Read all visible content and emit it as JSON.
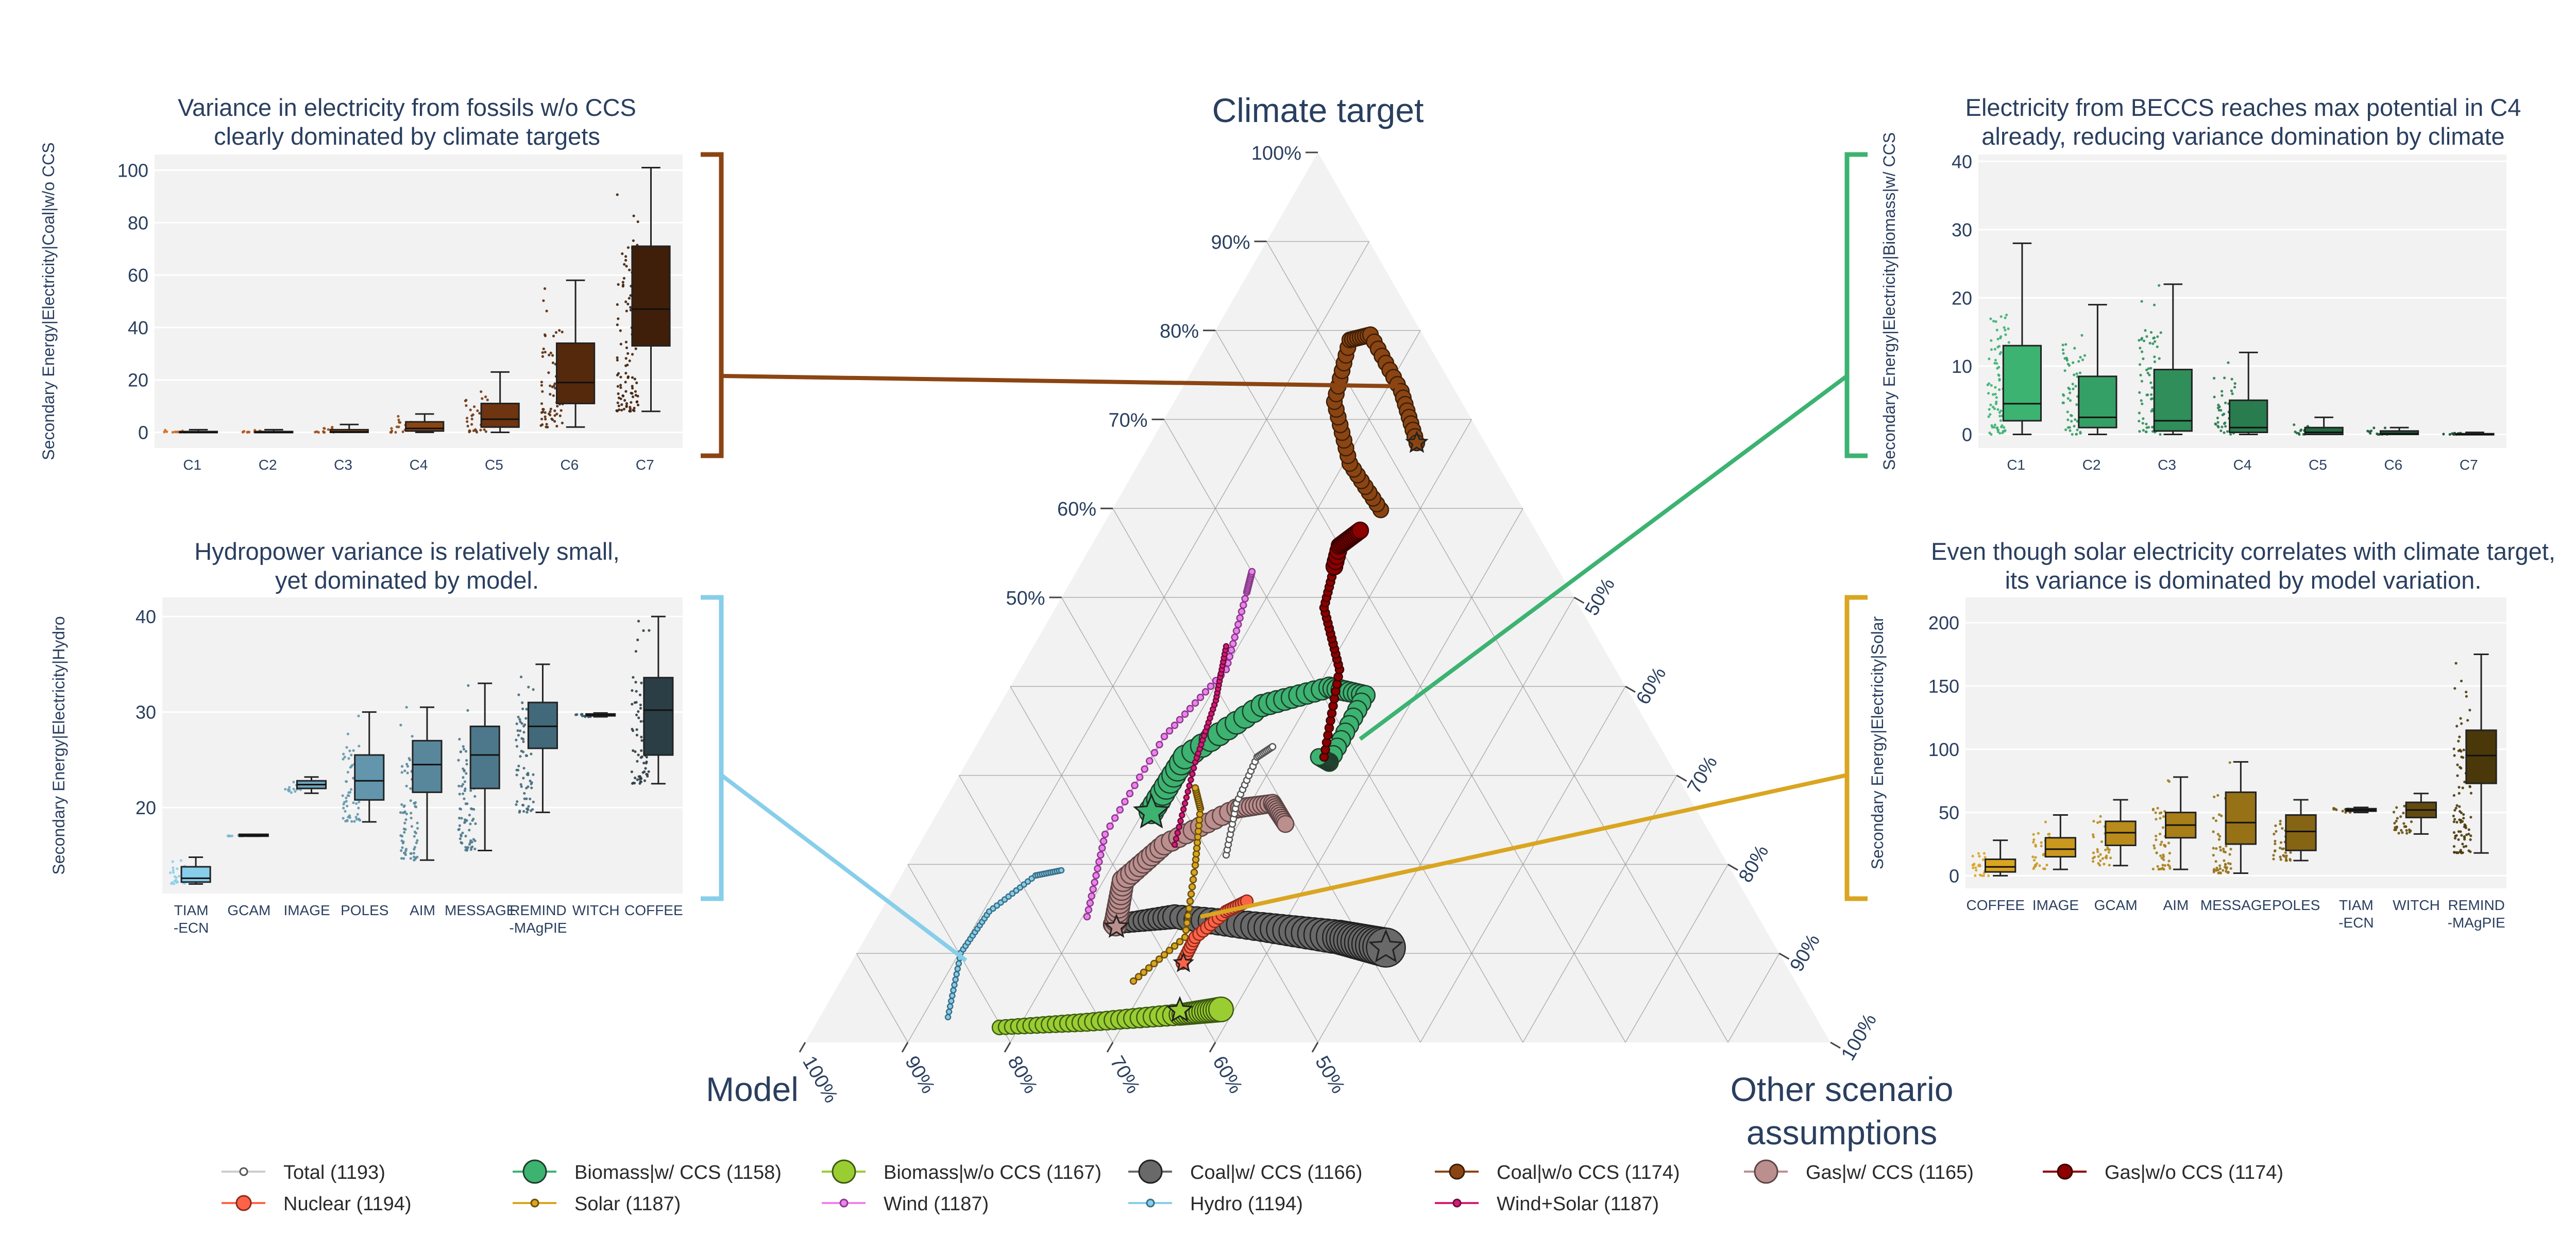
{
  "colors": {
    "text": "#2a3f5f",
    "panel_bg": "#f2f2f2",
    "grid": "#ffffff",
    "ternary_bg": "#f2f2f2",
    "ternary_grid": "#9a9a9a",
    "coal_wo": "#8b4513",
    "biomass_w": "#3cb371",
    "hydro": "#87ceeb",
    "solar": "#daa520"
  },
  "ternary": {
    "title_top": "Climate target",
    "title_left": "Model",
    "title_right_line1": "Other scenario",
    "title_right_line2": "assumptions",
    "left_axis_ticks": [
      "50%",
      "60%",
      "70%",
      "80%",
      "90%",
      "100%"
    ],
    "right_axis_ticks": [
      "50%",
      "60%",
      "70%",
      "80%",
      "90%",
      "100%"
    ],
    "bottom_axis_ticks": [
      "100%",
      "90%",
      "80%",
      "70%",
      "60%",
      "50%"
    ]
  },
  "legend": [
    {
      "label": "Total (1193)",
      "color": "#ffffff",
      "stroke": "#555555",
      "size": "small"
    },
    {
      "label": "Biomass|w/ CCS (1158)",
      "color": "#3cb371",
      "stroke": "#1f3d2b",
      "size": "large"
    },
    {
      "label": "Biomass|w/o CCS (1167)",
      "color": "#9acd32",
      "stroke": "#3c5a10",
      "size": "large"
    },
    {
      "label": "Coal|w/ CCS (1166)",
      "color": "#696969",
      "stroke": "#222222",
      "size": "large"
    },
    {
      "label": "Coal|w/o CCS (1174)",
      "color": "#8b4513",
      "stroke": "#3d1e06",
      "size": "medium"
    },
    {
      "label": "Gas|w/ CCS (1165)",
      "color": "#bc8f8f",
      "stroke": "#5e4545",
      "size": "large"
    },
    {
      "label": "Gas|w/o CCS (1174)",
      "color": "#8b0000",
      "stroke": "#3a0000",
      "size": "medium"
    },
    {
      "label": "Nuclear (1194)",
      "color": "#ff6347",
      "stroke": "#8b2a1b",
      "size": "medium"
    },
    {
      "label": "Solar (1187)",
      "color": "#daa520",
      "stroke": "#6b500c",
      "size": "small"
    },
    {
      "label": "Wind (1187)",
      "color": "#ee82ee",
      "stroke": "#8b3a8b",
      "size": "small"
    },
    {
      "label": "Hydro (1194)",
      "color": "#87ceeb",
      "stroke": "#3a6f86",
      "size": "small"
    },
    {
      "label": "Wind+Solar (1187)",
      "color": "#d81b78",
      "stroke": "#6d0c3b",
      "size": "small"
    }
  ],
  "chart_data": [
    {
      "type": "box",
      "id": "coal",
      "title_line1": "Variance in electricity from fossils w/o CCS",
      "title_line2": "clearly dominated by climate targets",
      "ylabel": "Secondary Energy|Electricity|Coal|w/o CCS",
      "ylim": [
        -6,
        106
      ],
      "yticks": [
        "0",
        "20",
        "40",
        "60",
        "80",
        "100"
      ],
      "categories": [
        "C1",
        "C2",
        "C3",
        "C4",
        "C5",
        "C6",
        "C7"
      ],
      "fill_colors": [
        "#d2691e",
        "#b8561a",
        "#a04a15",
        "#8b4513",
        "#6e3510",
        "#55290c",
        "#3f1f09"
      ],
      "box": [
        {
          "min": 0,
          "q1": 0,
          "median": 0,
          "q3": 0.3,
          "max": 1
        },
        {
          "min": 0,
          "q1": 0,
          "median": 0,
          "q3": 0.3,
          "max": 1
        },
        {
          "min": 0,
          "q1": 0,
          "median": 0.2,
          "q3": 1,
          "max": 3
        },
        {
          "min": 0,
          "q1": 0.5,
          "median": 1.5,
          "q3": 4,
          "max": 7
        },
        {
          "min": 0,
          "q1": 2,
          "median": 5,
          "q3": 11,
          "max": 23
        },
        {
          "min": 2,
          "q1": 11,
          "median": 19,
          "q3": 34,
          "max": 58
        },
        {
          "min": 8,
          "q1": 33,
          "median": 47,
          "q3": 71,
          "max": 101
        }
      ]
    },
    {
      "type": "box",
      "id": "biomass",
      "title_line1": "Electricity from BECCS reaches max potential in C4",
      "title_line2": "already, reducing variance domination by climate",
      "ylabel": "Secondary Energy|Electricity|Biomass|w/ CCS",
      "ylim": [
        -2,
        41
      ],
      "yticks": [
        "0",
        "10",
        "20",
        "30",
        "40"
      ],
      "categories": [
        "C1",
        "C2",
        "C3",
        "C4",
        "C5",
        "C6",
        "C7"
      ],
      "fill_colors": [
        "#3cb371",
        "#35a065",
        "#2f8e59",
        "#297c4e",
        "#226a42",
        "#1b5836",
        "#15462b"
      ],
      "box": [
        {
          "min": 0,
          "q1": 2,
          "median": 4.5,
          "q3": 13,
          "max": 28
        },
        {
          "min": 0,
          "q1": 1,
          "median": 2.5,
          "q3": 8.5,
          "max": 19
        },
        {
          "min": 0,
          "q1": 0.5,
          "median": 2,
          "q3": 9.5,
          "max": 22
        },
        {
          "min": 0,
          "q1": 0.3,
          "median": 1,
          "q3": 5,
          "max": 12
        },
        {
          "min": 0,
          "q1": 0,
          "median": 0.3,
          "q3": 1,
          "max": 2.5
        },
        {
          "min": 0,
          "q1": 0,
          "median": 0.1,
          "q3": 0.5,
          "max": 1
        },
        {
          "min": 0,
          "q1": 0,
          "median": 0,
          "q3": 0.1,
          "max": 0.3
        }
      ]
    },
    {
      "type": "box",
      "id": "hydro",
      "title_line1": "Hydropower variance is relatively small,",
      "title_line2": "yet dominated by model.",
      "ylabel": "Secondary Energy|Electricity|Hydro",
      "ylim": [
        11,
        42
      ],
      "yticks": [
        "20",
        "30",
        "40"
      ],
      "categories": [
        "TIAM\n-ECN",
        "GCAM",
        "IMAGE",
        "POLES",
        "AIM",
        "MESSAGE",
        "REMIND\n-MAgPIE",
        "WITCH",
        "COFFEE"
      ],
      "fill_colors": [
        "#87ceeb",
        "#7ab9d4",
        "#6ea5be",
        "#6396ad",
        "#58879c",
        "#4d788b",
        "#42697a",
        "#375a69",
        "#2c3e45"
      ],
      "box": [
        {
          "min": 12,
          "q1": 12.2,
          "median": 12.6,
          "q3": 13.8,
          "max": 14.8
        },
        {
          "min": 17,
          "q1": 17,
          "median": 17.1,
          "q3": 17.2,
          "max": 17.2
        },
        {
          "min": 21.5,
          "q1": 22,
          "median": 22.4,
          "q3": 22.8,
          "max": 23.2
        },
        {
          "min": 18.5,
          "q1": 20.8,
          "median": 22.8,
          "q3": 25.5,
          "max": 30
        },
        {
          "min": 14.5,
          "q1": 21.6,
          "median": 24.5,
          "q3": 27,
          "max": 30.5
        },
        {
          "min": 15.5,
          "q1": 22,
          "median": 25.5,
          "q3": 28.5,
          "max": 33
        },
        {
          "min": 19.5,
          "q1": 26.2,
          "median": 28.5,
          "q3": 31,
          "max": 35
        },
        {
          "min": 29.5,
          "q1": 29.6,
          "median": 29.7,
          "q3": 29.8,
          "max": 29.9
        },
        {
          "min": 22.5,
          "q1": 25.5,
          "median": 30.2,
          "q3": 33.6,
          "max": 40
        }
      ]
    },
    {
      "type": "box",
      "id": "solar",
      "title_line1": "Even though solar electricity correlates with climate target,",
      "title_line2": "its variance is dominated by model variation.",
      "ylabel": "Secondary Energy|Electricity|Solar",
      "ylim": [
        -10,
        220
      ],
      "yticks": [
        "0",
        "50",
        "100",
        "150",
        "200"
      ],
      "categories": [
        "COFFEE",
        "IMAGE",
        "GCAM",
        "AIM",
        "MESSAGE",
        "POLES",
        "TIAM\n-ECN",
        "WITCH",
        "REMIND\n-MAgPIE"
      ],
      "fill_colors": [
        "#daa520",
        "#c9981d",
        "#b88b1b",
        "#a77e18",
        "#967116",
        "#856413",
        "#745711",
        "#634a0e",
        "#4a380a"
      ],
      "box": [
        {
          "min": 0,
          "q1": 3,
          "median": 7,
          "q3": 13,
          "max": 28
        },
        {
          "min": 5,
          "q1": 15,
          "median": 21,
          "q3": 30,
          "max": 48
        },
        {
          "min": 8,
          "q1": 24,
          "median": 34,
          "q3": 43,
          "max": 60
        },
        {
          "min": 5,
          "q1": 30,
          "median": 40,
          "q3": 50,
          "max": 78
        },
        {
          "min": 2,
          "q1": 25,
          "median": 42,
          "q3": 66,
          "max": 90
        },
        {
          "min": 12,
          "q1": 20,
          "median": 35,
          "q3": 48,
          "max": 60
        },
        {
          "min": 50,
          "q1": 51,
          "median": 52,
          "q3": 53,
          "max": 54
        },
        {
          "min": 33,
          "q1": 46,
          "median": 52,
          "q3": 58,
          "max": 65
        },
        {
          "min": 18,
          "q1": 73,
          "median": 95,
          "q3": 115,
          "max": 175
        }
      ]
    }
  ]
}
